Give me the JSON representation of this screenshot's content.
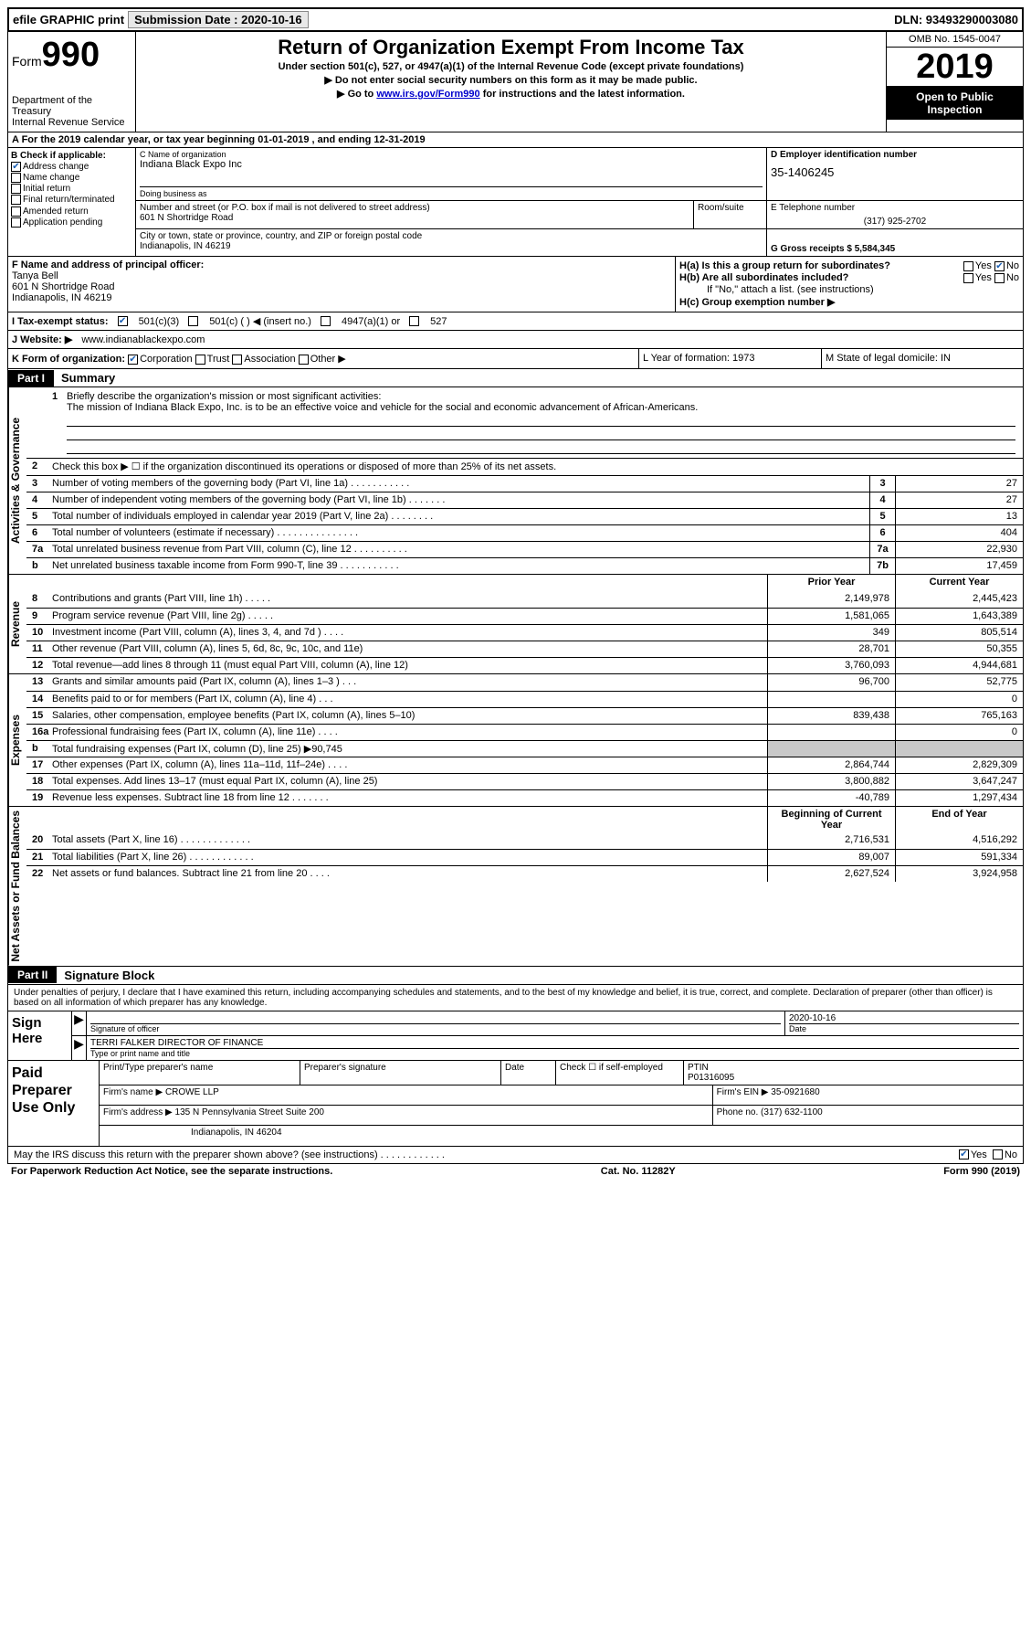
{
  "topbar": {
    "efile": "efile GRAPHIC print",
    "submission_label": "Submission Date : 2020-10-16",
    "dln": "DLN: 93493290003080"
  },
  "header": {
    "form_word": "Form",
    "form_num": "990",
    "dept": "Department of the Treasury",
    "irs": "Internal Revenue Service",
    "title": "Return of Organization Exempt From Income Tax",
    "under": "Under section 501(c), 527, or 4947(a)(1) of the Internal Revenue Code (except private foundations)",
    "instr1": "▶ Do not enter social security numbers on this form as it may be made public.",
    "instr2_pre": "▶ Go to ",
    "instr2_link": "www.irs.gov/Form990",
    "instr2_post": " for instructions and the latest information.",
    "omb": "OMB No. 1545-0047",
    "year": "2019",
    "open": "Open to Public Inspection"
  },
  "line_a": "A For the 2019 calendar year, or tax year beginning 01-01-2019    , and ending 12-31-2019",
  "box_b": {
    "label": "B Check if applicable:",
    "items": [
      {
        "txt": "Address change",
        "on": true
      },
      {
        "txt": "Name change",
        "on": false
      },
      {
        "txt": "Initial return",
        "on": false
      },
      {
        "txt": "Final return/terminated",
        "on": false
      },
      {
        "txt": "Amended return",
        "on": false
      },
      {
        "txt": "Application pending",
        "on": false
      }
    ]
  },
  "box_c": {
    "name_label": "C Name of organization",
    "name": "Indiana Black Expo Inc",
    "dba_label": "Doing business as",
    "addr_label": "Number and street (or P.O. box if mail is not delivered to street address)",
    "addr": "601 N Shortridge Road",
    "room_label": "Room/suite",
    "city_label": "City or town, state or province, country, and ZIP or foreign postal code",
    "city": "Indianapolis, IN  46219"
  },
  "box_d": {
    "label": "D Employer identification number",
    "val": "35-1406245"
  },
  "box_e": {
    "label": "E Telephone number",
    "val": "(317) 925-2702"
  },
  "box_g": {
    "label": "G Gross receipts $ 5,584,345"
  },
  "box_f": {
    "label": "F  Name and address of principal officer:",
    "name": "Tanya Bell",
    "addr1": "601 N Shortridge Road",
    "addr2": "Indianapolis, IN  46219"
  },
  "box_h": {
    "a": "H(a)  Is this a group return for subordinates?",
    "b": "H(b)  Are all subordinates included?",
    "note": "If \"No,\" attach a list. (see instructions)",
    "c": "H(c)  Group exemption number ▶",
    "yes": "Yes",
    "no": "No"
  },
  "row_i": {
    "label": "I  Tax-exempt status:",
    "c3": "501(c)(3)",
    "c": "501(c) (  ) ◀ (insert no.)",
    "a": "4947(a)(1) or",
    "d": "527"
  },
  "row_j": {
    "label": "J  Website: ▶ ",
    "val": "www.indianablackexpo.com"
  },
  "row_k": {
    "label": "K Form of organization:",
    "corp": "Corporation",
    "trust": "Trust",
    "assoc": "Association",
    "other": "Other ▶"
  },
  "row_l": {
    "label": "L Year of formation: 1973"
  },
  "row_m": {
    "label": "M State of legal domicile: IN"
  },
  "part1": {
    "lbl": "Part I",
    "title": "Summary"
  },
  "mission": {
    "num": "1",
    "label": "Briefly describe the organization's mission or most significant activities:",
    "text": "The mission of Indiana Black Expo, Inc. is to be an effective voice and vehicle for the social and economic advancement of African-Americans."
  },
  "vtabs": {
    "gov": "Activities & Governance",
    "rev": "Revenue",
    "exp": "Expenses",
    "net": "Net Assets or Fund Balances"
  },
  "lines_gov": [
    {
      "num": "2",
      "desc": "Check this box ▶ ☐  if the organization discontinued its operations or disposed of more than 25% of its net assets.",
      "box": "",
      "amt": ""
    },
    {
      "num": "3",
      "desc": "Number of voting members of the governing body (Part VI, line 1a)   .    .    .    .    .    .    .    .    .    .    .",
      "box": "3",
      "amt": "27"
    },
    {
      "num": "4",
      "desc": "Number of independent voting members of the governing body (Part VI, line 1b)   .    .    .    .    .    .    .",
      "box": "4",
      "amt": "27"
    },
    {
      "num": "5",
      "desc": "Total number of individuals employed in calendar year 2019 (Part V, line 2a)   .    .    .    .    .    .    .    .",
      "box": "5",
      "amt": "13"
    },
    {
      "num": "6",
      "desc": "Total number of volunteers (estimate if necessary)    .    .    .    .    .    .    .    .    .    .    .    .    .    .    .",
      "box": "6",
      "amt": "404"
    },
    {
      "num": "7a",
      "desc": "Total unrelated business revenue from Part VIII, column (C), line 12   .    .    .    .    .    .    .    .    .    .",
      "box": "7a",
      "amt": "22,930"
    },
    {
      "num": "b",
      "desc": "Net unrelated business taxable income from Form 990-T, line 39   .    .    .    .    .    .    .    .    .    .    .",
      "box": "7b",
      "amt": "17,459"
    }
  ],
  "col_hdrs": {
    "prior": "Prior Year",
    "current": "Current Year"
  },
  "lines_rev": [
    {
      "num": "8",
      "desc": "Contributions and grants (Part VIII, line 1h)    .    .    .    .    .",
      "py": "2,149,978",
      "cy": "2,445,423"
    },
    {
      "num": "9",
      "desc": "Program service revenue (Part VIII, line 2g)    .    .    .    .    .",
      "py": "1,581,065",
      "cy": "1,643,389"
    },
    {
      "num": "10",
      "desc": "Investment income (Part VIII, column (A), lines 3, 4, and 7d )    .    .    .    .",
      "py": "349",
      "cy": "805,514"
    },
    {
      "num": "11",
      "desc": "Other revenue (Part VIII, column (A), lines 5, 6d, 8c, 9c, 10c, and 11e)",
      "py": "28,701",
      "cy": "50,355"
    },
    {
      "num": "12",
      "desc": "Total revenue—add lines 8 through 11 (must equal Part VIII, column (A), line 12)",
      "py": "3,760,093",
      "cy": "4,944,681"
    }
  ],
  "lines_exp": [
    {
      "num": "13",
      "desc": "Grants and similar amounts paid (Part IX, column (A), lines 1–3 )    .    .    .",
      "py": "96,700",
      "cy": "52,775"
    },
    {
      "num": "14",
      "desc": "Benefits paid to or for members (Part IX, column (A), line 4)    .    .    .",
      "py": "",
      "cy": "0"
    },
    {
      "num": "15",
      "desc": "Salaries, other compensation, employee benefits (Part IX, column (A), lines 5–10)",
      "py": "839,438",
      "cy": "765,163"
    },
    {
      "num": "16a",
      "desc": "Professional fundraising fees (Part IX, column (A), line 11e)    .    .    .    .",
      "py": "",
      "cy": "0"
    },
    {
      "num": "b",
      "desc": "Total fundraising expenses (Part IX, column (D), line 25) ▶90,745",
      "py": "",
      "cy": "",
      "shade": true
    },
    {
      "num": "17",
      "desc": "Other expenses (Part IX, column (A), lines 11a–11d, 11f–24e)    .    .    .    .",
      "py": "2,864,744",
      "cy": "2,829,309"
    },
    {
      "num": "18",
      "desc": "Total expenses. Add lines 13–17 (must equal Part IX, column (A), line 25)",
      "py": "3,800,882",
      "cy": "3,647,247"
    },
    {
      "num": "19",
      "desc": "Revenue less expenses. Subtract line 18 from line 12  .    .    .    .    .    .    .",
      "py": "-40,789",
      "cy": "1,297,434"
    }
  ],
  "col_hdrs2": {
    "begin": "Beginning of Current Year",
    "end": "End of Year"
  },
  "lines_net": [
    {
      "num": "20",
      "desc": "Total assets (Part X, line 16)   .    .    .    .    .    .    .    .    .    .    .    .    .",
      "py": "2,716,531",
      "cy": "4,516,292"
    },
    {
      "num": "21",
      "desc": "Total liabilities (Part X, line 26)   .    .    .    .    .    .    .    .    .    .    .    .",
      "py": "89,007",
      "cy": "591,334"
    },
    {
      "num": "22",
      "desc": "Net assets or fund balances. Subtract line 21 from line 20    .    .    .    .",
      "py": "2,627,524",
      "cy": "3,924,958"
    }
  ],
  "part2": {
    "lbl": "Part II",
    "title": "Signature Block"
  },
  "sig_prelude": "Under penalties of perjury, I declare that I have examined this return, including accompanying schedules and statements, and to the best of my knowledge and belief, it is true, correct, and complete. Declaration of preparer (other than officer) is based on all information of which preparer has any knowledge.",
  "sign": {
    "here": "Sign Here",
    "sig_label": "Signature of officer",
    "date_label": "Date",
    "date": "2020-10-16",
    "name": "TERRI FALKER  DIRECTOR OF FINANCE",
    "name_label": "Type or print name and title"
  },
  "paid": {
    "here": "Paid Preparer Use Only",
    "r1": {
      "a": "Print/Type preparer's name",
      "b": "Preparer's signature",
      "c": "Date",
      "d": "Check ☐  if self-employed",
      "e": "PTIN",
      "ptin": "P01316095"
    },
    "r2": {
      "a": "Firm's name    ▶ CROWE LLP",
      "b": "Firm's EIN ▶ 35-0921680"
    },
    "r3": {
      "a": "Firm's address ▶ 135 N Pennsylvania Street Suite 200",
      "b": "Phone no. (317) 632-1100"
    },
    "r4": {
      "a": "Indianapolis, IN  46204"
    }
  },
  "discuss": {
    "q": "May the IRS discuss this return with the preparer shown above? (see instructions)    .    .    .    .    .    .    .    .    .    .    .    .",
    "yes": "Yes",
    "no": "No"
  },
  "footer": {
    "left": "For Paperwork Reduction Act Notice, see the separate instructions.",
    "mid": "Cat. No. 11282Y",
    "right": "Form 990 (2019)"
  }
}
